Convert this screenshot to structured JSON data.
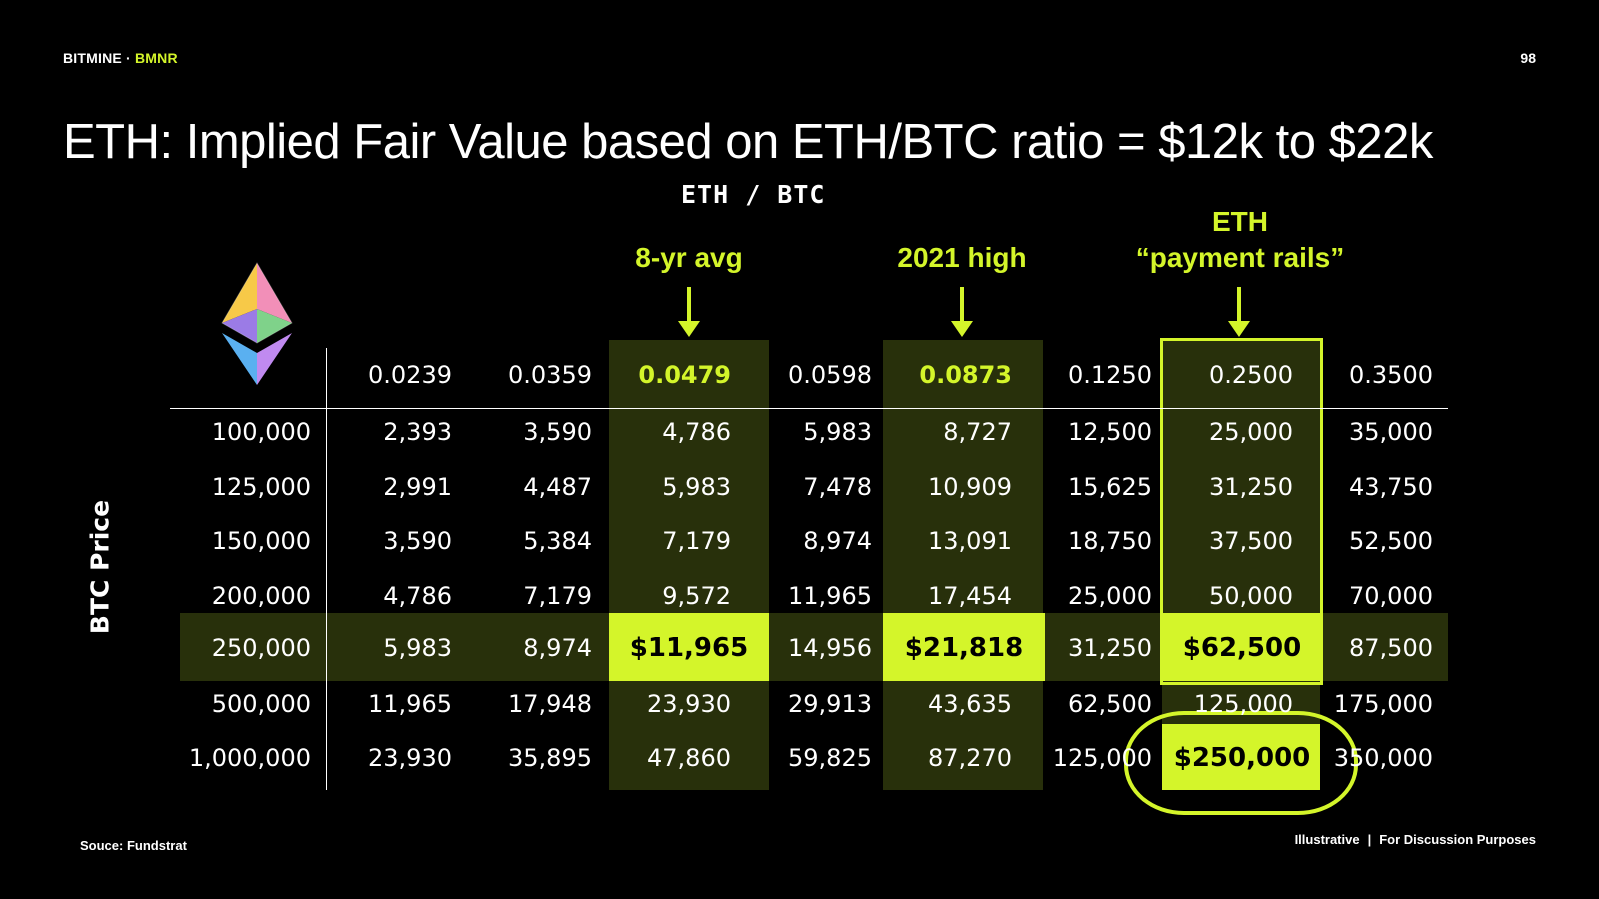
{
  "header": {
    "brand": "BITMINE",
    "separator": " · ",
    "ticker": "BMNR",
    "page_number": "98"
  },
  "title": "ETH: Implied Fair Value based on ETH/BTC ratio = $12k to $22k",
  "footer": {
    "source": "Souce: Fundstrat",
    "note_left": "Illustrative",
    "note_sep": "|",
    "note_right": "For Discussion Purposes"
  },
  "colors": {
    "accent": "#d4f52a",
    "highlight_bg": "#28300b",
    "background": "#000000"
  },
  "icon": "ethereum-logo-icon",
  "chart_data": {
    "type": "table",
    "title": "ETH: Implied Fair Value based on ETH/BTC ratio = $12k to $22k",
    "column_axis_label": "ETH / BTC",
    "row_axis_label": "BTC Price",
    "annotations": [
      {
        "text": "8-yr avg",
        "column_index": 2
      },
      {
        "text": "2021 high",
        "column_index": 4
      },
      {
        "text_line1": "ETH",
        "text_line2": "“payment rails”",
        "column_index": 6
      }
    ],
    "columns": [
      "0.0239",
      "0.0359",
      "0.0479",
      "0.0598",
      "0.0873",
      "0.1250",
      "0.2500",
      "0.3500"
    ],
    "rows": [
      "100,000",
      "125,000",
      "150,000",
      "200,000",
      "250,000",
      "500,000",
      "1,000,000"
    ],
    "cells": [
      [
        "2,393",
        "3,590",
        "4,786",
        "5,983",
        "8,727",
        "12,500",
        "25,000",
        "35,000"
      ],
      [
        "2,991",
        "4,487",
        "5,983",
        "7,478",
        "10,909",
        "15,625",
        "31,250",
        "43,750"
      ],
      [
        "3,590",
        "5,384",
        "7,179",
        "8,974",
        "13,091",
        "18,750",
        "37,500",
        "52,500"
      ],
      [
        "4,786",
        "7,179",
        "9,572",
        "11,965",
        "17,454",
        "25,000",
        "50,000",
        "70,000"
      ],
      [
        "5,983",
        "8,974",
        "$11,965",
        "14,956",
        "$21,818",
        "31,250",
        "$62,500",
        "87,500"
      ],
      [
        "11,965",
        "17,948",
        "23,930",
        "29,913",
        "43,635",
        "62,500",
        "125,000",
        "175,000"
      ],
      [
        "23,930",
        "35,895",
        "47,860",
        "59,825",
        "87,270",
        "125,000",
        "$250,000",
        "350,000"
      ]
    ],
    "highlighted_columns": [
      2,
      4
    ],
    "highlighted_row": 4,
    "boxed_column": 6,
    "emphasized_cells": [
      [
        4,
        2
      ],
      [
        4,
        4
      ],
      [
        4,
        6
      ],
      [
        6,
        6
      ]
    ],
    "circled_cell": [
      6,
      6
    ]
  }
}
